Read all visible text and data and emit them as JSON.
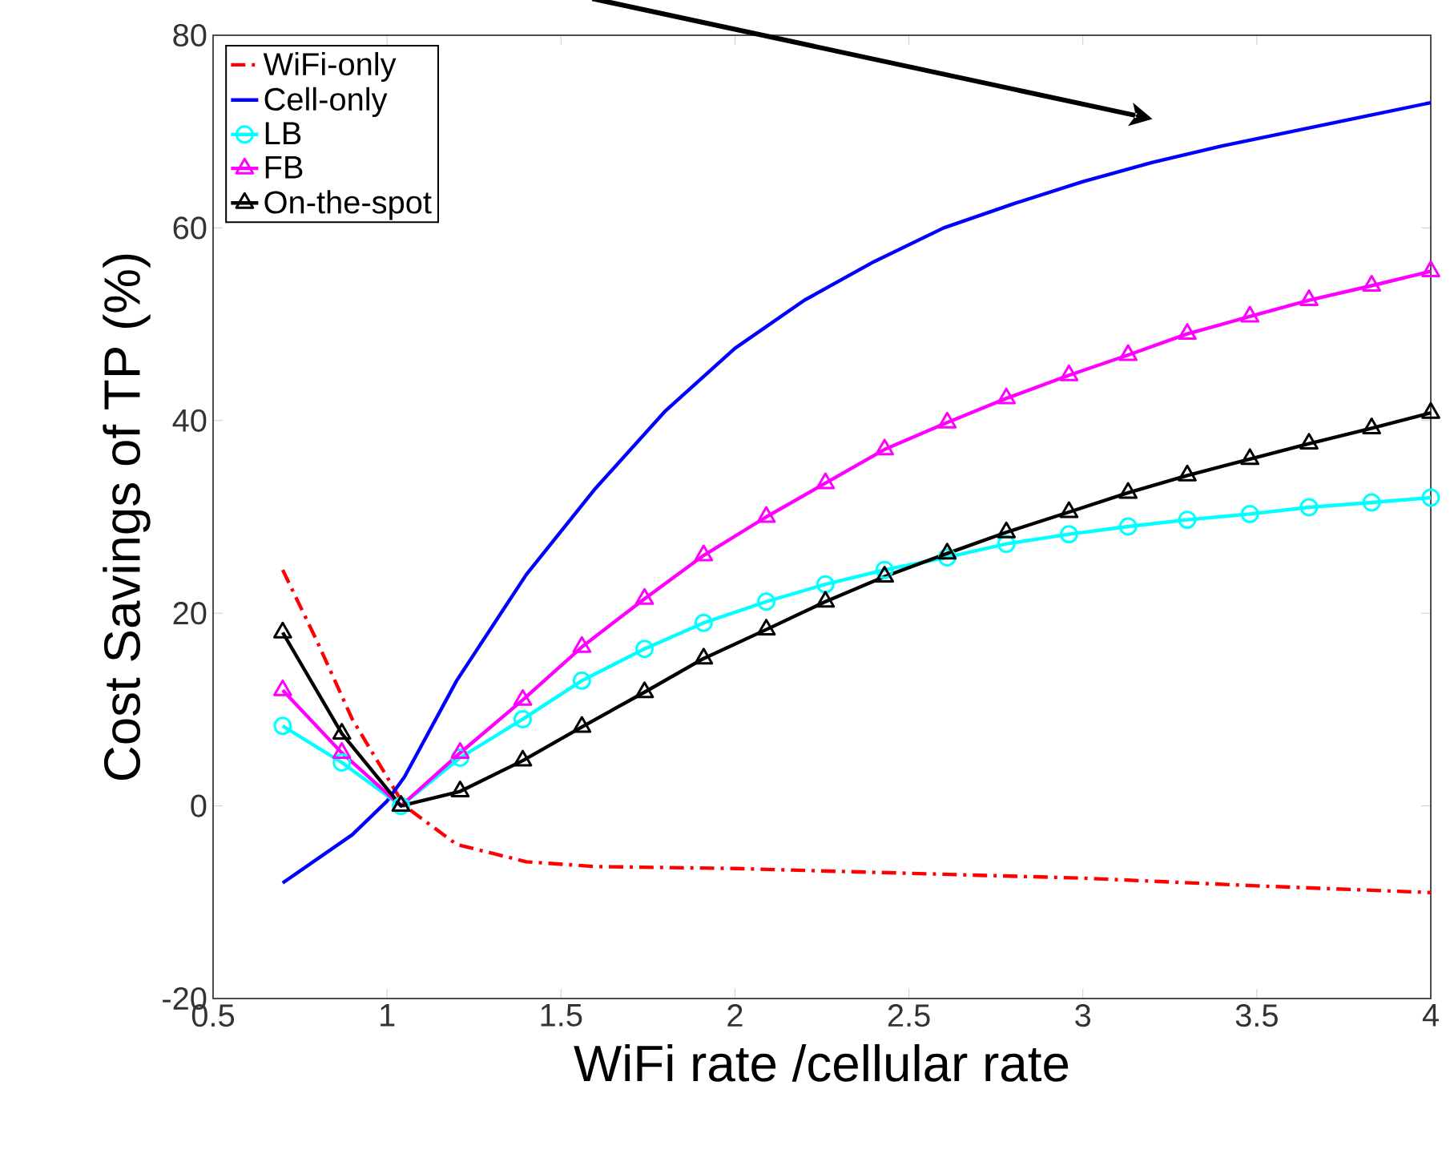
{
  "chart_data": {
    "type": "line",
    "xlabel": "WiFi rate /cellular rate",
    "ylabel": "Cost Savings of TP (%)",
    "xlim": [
      0.5,
      4
    ],
    "ylim": [
      -20,
      80
    ],
    "xticks": [
      0.5,
      1,
      1.5,
      2,
      2.5,
      3,
      3.5,
      4
    ],
    "yticks": [
      -20,
      0,
      20,
      40,
      60,
      80
    ],
    "grid": false,
    "legend": "top left",
    "series": [
      {
        "name": "WiFi-only",
        "color": "#ff0000",
        "line_style": "dashdot",
        "marker": "none",
        "x": [
          0.7,
          0.8,
          0.9,
          1.0,
          1.05,
          1.2,
          1.4,
          1.6,
          2.0,
          2.5,
          3.0,
          3.5,
          4.0
        ],
        "values": [
          24.5,
          17,
          9,
          3,
          0,
          -4,
          -5.8,
          -6.3,
          -6.5,
          -7,
          -7.5,
          -8.3,
          -9
        ]
      },
      {
        "name": "Cell-only",
        "color": "#0000ff",
        "line_style": "solid",
        "marker": "none",
        "x": [
          0.7,
          0.9,
          1.0,
          1.05,
          1.2,
          1.4,
          1.6,
          1.8,
          2.0,
          2.2,
          2.4,
          2.6,
          2.8,
          3.0,
          3.2,
          3.4,
          3.6,
          3.8,
          4.0
        ],
        "values": [
          -8,
          -3,
          0.5,
          3,
          13,
          24,
          33,
          41,
          47.5,
          52.5,
          56.5,
          60,
          62.5,
          64.8,
          66.8,
          68.5,
          70,
          71.5,
          73
        ]
      },
      {
        "name": "LB",
        "color": "#00ffff",
        "line_style": "solid",
        "marker": "circle",
        "x": [
          0.7,
          0.87,
          1.04,
          1.21,
          1.39,
          1.56,
          1.74,
          1.91,
          2.09,
          2.26,
          2.43,
          2.61,
          2.78,
          2.96,
          3.13,
          3.3,
          3.48,
          3.65,
          3.83,
          4.0
        ],
        "values": [
          8.3,
          4.5,
          0,
          5,
          9,
          13,
          16.3,
          19,
          21.2,
          23,
          24.5,
          25.8,
          27.2,
          28.2,
          29,
          29.7,
          30.3,
          31,
          31.5,
          32
        ]
      },
      {
        "name": "FB",
        "color": "#ff00ff",
        "line_style": "solid",
        "marker": "triangle",
        "x": [
          0.7,
          0.87,
          1.04,
          1.21,
          1.39,
          1.56,
          1.74,
          1.91,
          2.09,
          2.26,
          2.43,
          2.61,
          2.78,
          2.96,
          3.13,
          3.3,
          3.48,
          3.65,
          3.83,
          4.0
        ],
        "values": [
          12,
          5.5,
          0,
          5.5,
          11,
          16.5,
          21.5,
          26,
          30,
          33.5,
          37,
          39.8,
          42.3,
          44.7,
          46.8,
          49,
          50.8,
          52.5,
          54,
          55.5
        ]
      },
      {
        "name": "On-the-spot",
        "color": "#000000",
        "line_style": "solid",
        "marker": "triangle",
        "x": [
          0.7,
          0.87,
          1.04,
          1.21,
          1.39,
          1.56,
          1.74,
          1.91,
          2.09,
          2.26,
          2.43,
          2.61,
          2.78,
          2.96,
          3.13,
          3.3,
          3.48,
          3.65,
          3.83,
          4.0
        ],
        "values": [
          18,
          7.5,
          0,
          1.5,
          4.7,
          8.2,
          11.8,
          15.3,
          18.3,
          21.2,
          23.8,
          26.2,
          28.4,
          30.5,
          32.5,
          34.3,
          36,
          37.6,
          39.2,
          40.8
        ]
      }
    ]
  }
}
